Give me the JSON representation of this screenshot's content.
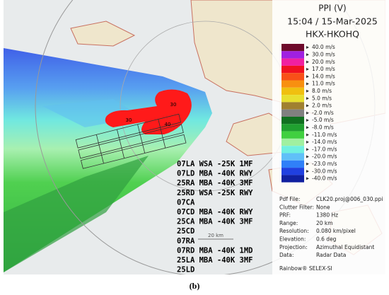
{
  "header": {
    "title": "PPI (V)",
    "datetime": "15:04 / 15-Mar-2025",
    "station": "HKX-HKOHQ"
  },
  "legend": [
    {
      "label": "40.0 m/s",
      "color": "#6e0a2c"
    },
    {
      "label": "30.0 m/s",
      "color": "#a020e0"
    },
    {
      "label": "20.0 m/s",
      "color": "#f020a0"
    },
    {
      "label": "17.0 m/s",
      "color": "#f01020"
    },
    {
      "label": "14.0 m/s",
      "color": "#f85018"
    },
    {
      "label": "11.0 m/s",
      "color": "#f89010"
    },
    {
      "label": "8.0 m/s",
      "color": "#f0c010"
    },
    {
      "label": "5.0 m/s",
      "color": "#e8e030"
    },
    {
      "label": "2.0 m/s",
      "color": "#a08030"
    },
    {
      "label": "-2.0 m/s",
      "color": "#808080"
    },
    {
      "label": "-5.0 m/s",
      "color": "#107020"
    },
    {
      "label": "-8.0 m/s",
      "color": "#20a030"
    },
    {
      "label": "-11.0 m/s",
      "color": "#40d040"
    },
    {
      "label": "-14.0 m/s",
      "color": "#a0f0a0"
    },
    {
      "label": "-17.0 m/s",
      "color": "#70f0e0"
    },
    {
      "label": "-20.0 m/s",
      "color": "#60c0f8"
    },
    {
      "label": "-23.0 m/s",
      "color": "#3080f8"
    },
    {
      "label": "-30.0 m/s",
      "color": "#2040e0"
    },
    {
      "label": "-40.0 m/s",
      "color": "#1020a0"
    }
  ],
  "info": [
    {
      "key": "Pdf File:",
      "value": "CLK20.proj@006_030.ppi"
    },
    {
      "key": "Clutter Filter:",
      "value": "None"
    },
    {
      "key": "PRF:",
      "value": "1380 Hz"
    },
    {
      "key": "Range:",
      "value": "20 km"
    },
    {
      "key": "Resolution:",
      "value": "0.080 km/pixel"
    },
    {
      "key": "Elevation:",
      "value": "0.6 deg"
    },
    {
      "key": "Projection:",
      "value": "Azimuthal Equidistant"
    },
    {
      "key": "Data:",
      "value": "Radar Data"
    }
  ],
  "footer": "Rainbow® SELEX-SI",
  "map": {
    "blob_labels": [
      "30",
      "30",
      "40"
    ],
    "scale_label": "20 km",
    "runway_notes": [
      "07LA WSA -25K 1MF",
      "07LD MBA -40K RWY",
      "25RA MBA -40K 3MF",
      "25RD WSA -25K RWY",
      "07CA",
      "07CD MBA -40K RWY",
      "25CA MBA -40K 3MF",
      "25CD",
      "07RA",
      "07RD MBA -40K 1MD",
      "25LA MBA -40K 3MF",
      "25LD"
    ]
  },
  "caption": "(b)"
}
